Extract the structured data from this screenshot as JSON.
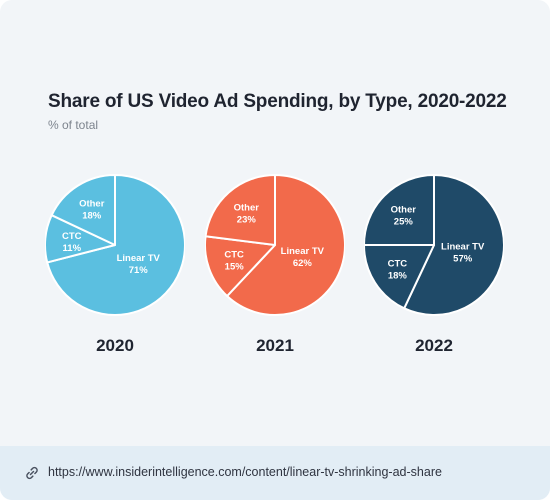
{
  "title": "Share of US Video Ad Spending, by Type, 2020-2022",
  "subtitle": "% of total",
  "footer": {
    "url": "https://www.insiderintelligence.com/content/linear-tv-shrinking-ad-share",
    "icon": "link-icon"
  },
  "chart_data": [
    {
      "type": "pie",
      "title": "2020",
      "color": "#5bbfe0",
      "slices": [
        {
          "label": "Linear TV",
          "value": 71,
          "display": "71%"
        },
        {
          "label": "CTC",
          "value": 11,
          "display": "11%"
        },
        {
          "label": "Other",
          "value": 18,
          "display": "18%"
        }
      ]
    },
    {
      "type": "pie",
      "title": "2021",
      "color": "#f26a4b",
      "slices": [
        {
          "label": "Linear TV",
          "value": 62,
          "display": "62%"
        },
        {
          "label": "CTC",
          "value": 15,
          "display": "15%"
        },
        {
          "label": "Other",
          "value": 23,
          "display": "23%"
        }
      ]
    },
    {
      "type": "pie",
      "title": "2022",
      "color": "#1f4a68",
      "slices": [
        {
          "label": "Linear TV",
          "value": 57,
          "display": "57%"
        },
        {
          "label": "CTC",
          "value": 18,
          "display": "18%"
        },
        {
          "label": "Other",
          "value": 25,
          "display": "25%"
        }
      ]
    }
  ]
}
